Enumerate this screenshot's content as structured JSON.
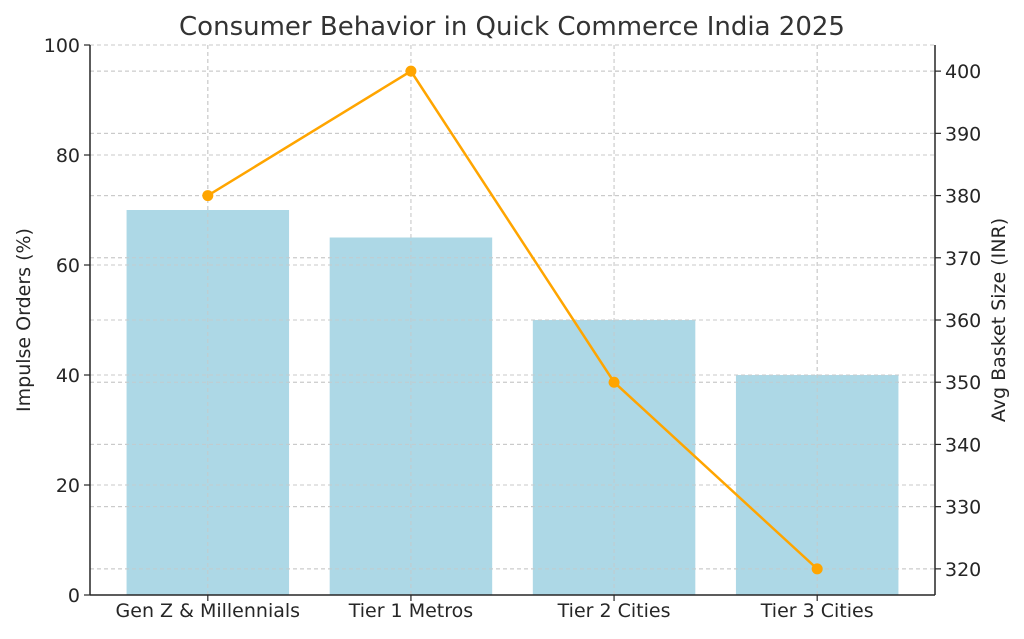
{
  "chart_data": {
    "type": "bar",
    "title": "Consumer Behavior in Quick Commerce India 2025",
    "categories": [
      "Gen Z & Millennials",
      "Tier 1 Metros",
      "Tier 2 Cities",
      "Tier 3 Cities"
    ],
    "xlabel": "",
    "series": [
      {
        "name": "Impulse Orders (%)",
        "type": "bar",
        "axis": "left",
        "color": "#add8e6",
        "values": [
          70,
          65,
          50,
          40
        ]
      },
      {
        "name": "Avg Basket Size (INR)",
        "type": "line",
        "axis": "right",
        "color": "#ffa500",
        "values": [
          380,
          400,
          350,
          320
        ]
      }
    ],
    "ylabel": "Impulse Orders (%)",
    "ylim": [
      0,
      100
    ],
    "yticks": [
      0,
      20,
      40,
      60,
      80,
      100
    ],
    "y2label": "Avg Basket Size (INR)",
    "y2lim": [
      315.8,
      404.2
    ],
    "y2ticks": [
      320,
      330,
      340,
      350,
      360,
      370,
      380,
      390,
      400
    ],
    "grid": true,
    "legend": "none"
  }
}
